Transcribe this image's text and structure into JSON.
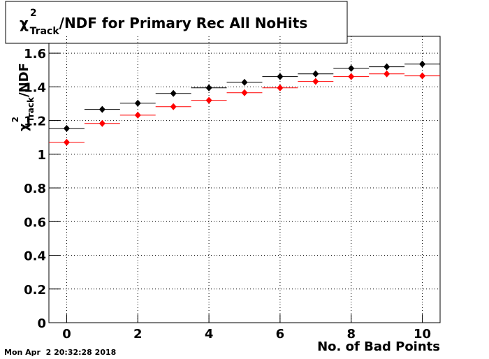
{
  "chart_data": {
    "type": "scatter",
    "title": {
      "symbol": "χ",
      "sup": "2",
      "sub": "Track",
      "rest": "/NDF for Primary Rec All NoHits"
    },
    "y_label": {
      "symbol": "χ",
      "sup": "2",
      "sub": "Track",
      "rest": "/NDF"
    },
    "x_label": "No. of Bad Points",
    "timestamp": "Mon Apr  2 20:32:28 2018",
    "x": [
      0,
      1,
      2,
      3,
      4,
      5,
      6,
      7,
      8,
      9,
      10
    ],
    "series": [
      {
        "color": "#000000",
        "values": [
          1.153,
          1.266,
          1.303,
          1.361,
          1.394,
          1.427,
          1.461,
          1.477,
          1.51,
          1.519,
          1.535
        ]
      },
      {
        "color": "#ff0000",
        "values": [
          1.071,
          1.183,
          1.232,
          1.282,
          1.32,
          1.365,
          1.394,
          1.432,
          1.461,
          1.477,
          1.465
        ]
      }
    ],
    "xlim": [
      -0.5,
      10.5
    ],
    "ylim": [
      0,
      1.7
    ],
    "xticks": [
      0,
      2,
      4,
      6,
      8,
      10
    ],
    "yticks": [
      0,
      0.2,
      0.4,
      0.6,
      0.8,
      1,
      1.2,
      1.4,
      1.6
    ],
    "grid": true
  }
}
